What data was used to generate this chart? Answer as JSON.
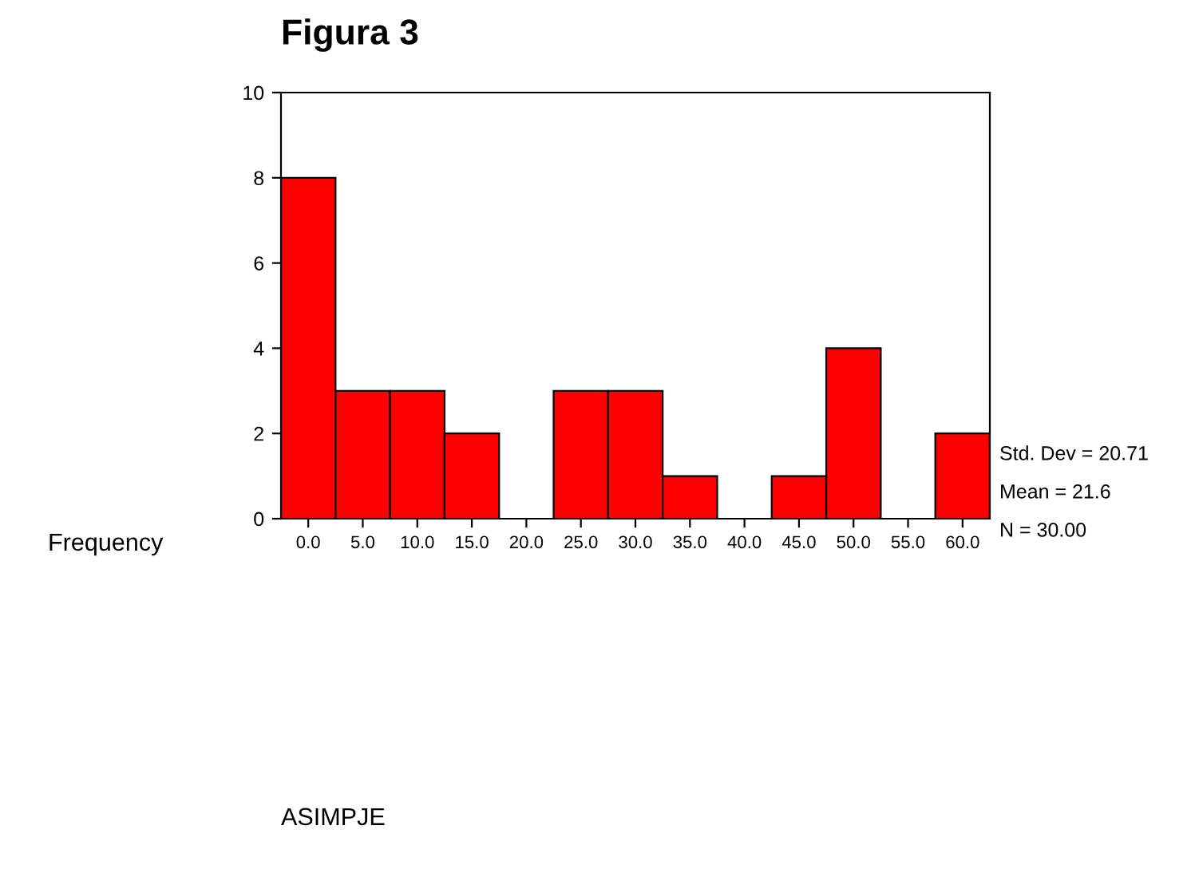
{
  "chart_data": {
    "type": "histogram",
    "title": "Figura 3",
    "ylabel": "Frequency",
    "bins": [
      -2.5,
      2.5,
      7.5,
      12.5,
      17.5,
      22.5,
      27.5,
      32.5,
      37.5,
      42.5,
      47.5,
      52.5,
      57.5,
      62.5
    ],
    "values": [
      8,
      3,
      3,
      2,
      0,
      3,
      3,
      1,
      0,
      1,
      4,
      0,
      2
    ],
    "color": "#ff0000",
    "xlim": [
      -2.5,
      62.5
    ],
    "xticks": [
      {
        "value": 0,
        "label": "0.0"
      },
      {
        "value": 5,
        "label": "5.0"
      },
      {
        "value": 10,
        "label": "10.0"
      },
      {
        "value": 15,
        "label": "15.0"
      },
      {
        "value": 20,
        "label": "20.0"
      },
      {
        "value": 25,
        "label": "25.0"
      },
      {
        "value": 30,
        "label": "30.0"
      },
      {
        "value": 35,
        "label": "35.0"
      },
      {
        "value": 40,
        "label": "40.0"
      },
      {
        "value": 45,
        "label": "45.0"
      },
      {
        "value": 50,
        "label": "50.0"
      },
      {
        "value": 55,
        "label": "55.0"
      },
      {
        "value": 60,
        "label": "60.0"
      }
    ],
    "ylim": [
      0,
      10
    ],
    "yticks": [
      0,
      2,
      4,
      6,
      8,
      10
    ],
    "annotations": [
      "Std. Dev = 20.71",
      "Mean = 21.6",
      "N = 30.00",
      "ASIMPJE"
    ],
    "grid": false,
    "legend": false
  }
}
